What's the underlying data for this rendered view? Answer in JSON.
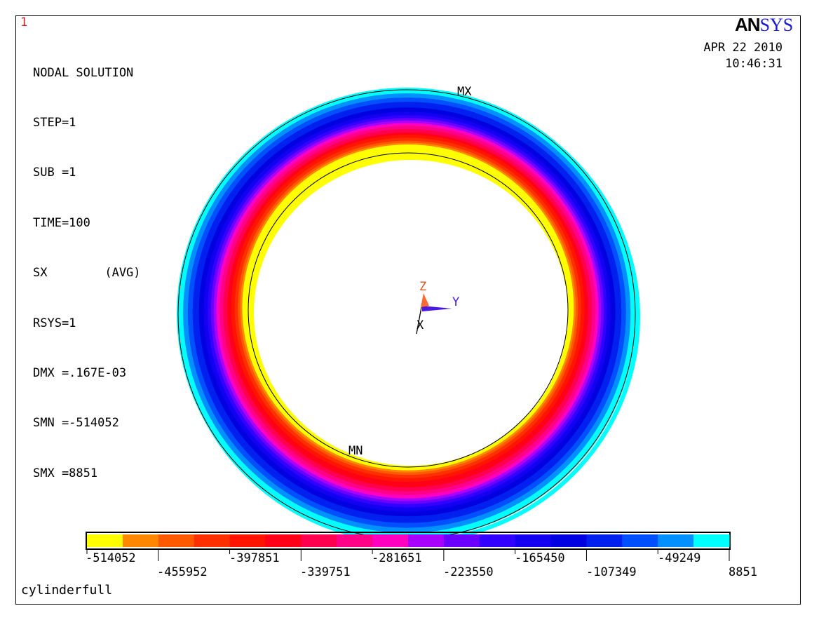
{
  "window_number": "1",
  "title": "NODAL SOLUTION",
  "info_lines": [
    "STEP=1",
    "SUB =1",
    "TIME=100",
    "SX        (AVG)",
    "RSYS=1",
    "DMX =.167E-03",
    "SMN =-514052",
    "SMX =8851"
  ],
  "logo": {
    "an": "AN",
    "sys": "SYS"
  },
  "date": "APR 22 2010",
  "time": "10:46:31",
  "markers": {
    "max": "MX",
    "min": "MN"
  },
  "axes": {
    "z": "Z",
    "y": "Y",
    "x": "X"
  },
  "legend": {
    "colors": [
      "#ffff00",
      "#ff8800",
      "#ff5a00",
      "#ff3000",
      "#ff1400",
      "#ff0018",
      "#ff0050",
      "#ff0088",
      "#ff00c0",
      "#a800ff",
      "#6a00ff",
      "#3200ff",
      "#1400f0",
      "#0000e0",
      "#0020f0",
      "#0050ff",
      "#0090ff",
      "#00ffff"
    ],
    "labels_top": [
      "-514052",
      "-397851",
      "-281651",
      "-165450",
      "-49249"
    ],
    "labels_bottom": [
      "-455952",
      "-339751",
      "-223550",
      "-107349",
      "8851"
    ]
  },
  "caption": "cylinderfull"
}
